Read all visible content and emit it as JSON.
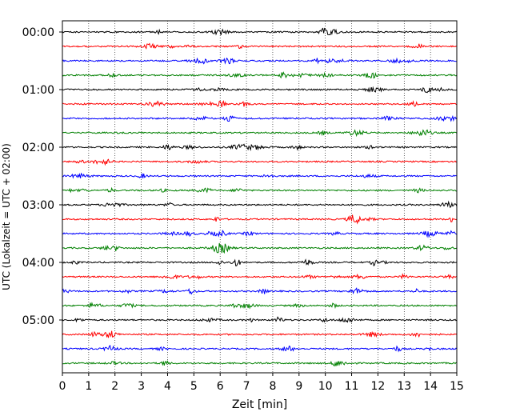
{
  "chart_data": {
    "type": "line",
    "title": "",
    "xlabel": "Zeit  [min]",
    "ylabel": "UTC (Lokalzeit = UTC + 02:00)",
    "xlim": [
      0,
      15
    ],
    "x_ticks": [
      0,
      1,
      2,
      3,
      4,
      5,
      6,
      7,
      8,
      9,
      10,
      11,
      12,
      13,
      14,
      15
    ],
    "x_tick_labels": [
      "0",
      "1",
      "2",
      "3",
      "4",
      "5",
      "6",
      "7",
      "8",
      "9",
      "10",
      "11",
      "12",
      "13",
      "14",
      "15"
    ],
    "x_grid": "dotted vertical lines at each minute",
    "trace_interval_min": 15,
    "row_count": 24,
    "hour_labels": [
      {
        "row": 0,
        "label": "00:00"
      },
      {
        "row": 4,
        "label": "01:00"
      },
      {
        "row": 8,
        "label": "02:00"
      },
      {
        "row": 12,
        "label": "03:00"
      },
      {
        "row": 16,
        "label": "04:00"
      },
      {
        "row": 20,
        "label": "05:00"
      }
    ],
    "color_cycle": [
      "#000000",
      "#ff0000",
      "#0000ff",
      "#008000"
    ],
    "description_of_series": "helicorder-style seismogram: one trace per 15-minute row, colors cycle black, red, blue, green"
  }
}
